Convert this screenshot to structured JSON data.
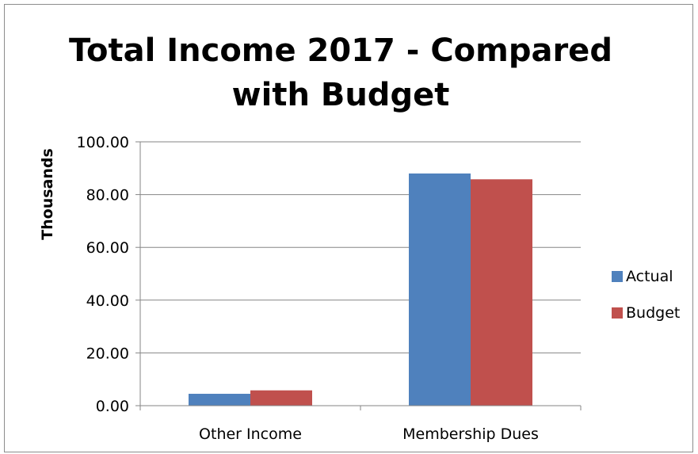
{
  "chart_data": {
    "type": "bar",
    "title": "Total Income 2017 - Compared with Budget",
    "ylabel": "Thousands",
    "xlabel": "",
    "categories": [
      "Other Income",
      "Membership Dues"
    ],
    "series": [
      {
        "name": "Actual",
        "values": [
          4.5,
          88.0
        ],
        "color": "#4f81bd"
      },
      {
        "name": "Budget",
        "values": [
          5.8,
          85.8
        ],
        "color": "#c0504d"
      }
    ],
    "ylim": [
      0,
      100
    ],
    "yticks": [
      "0.00",
      "20.00",
      "40.00",
      "60.00",
      "80.00",
      "100.00"
    ],
    "grid": true,
    "legend_position": "right"
  }
}
